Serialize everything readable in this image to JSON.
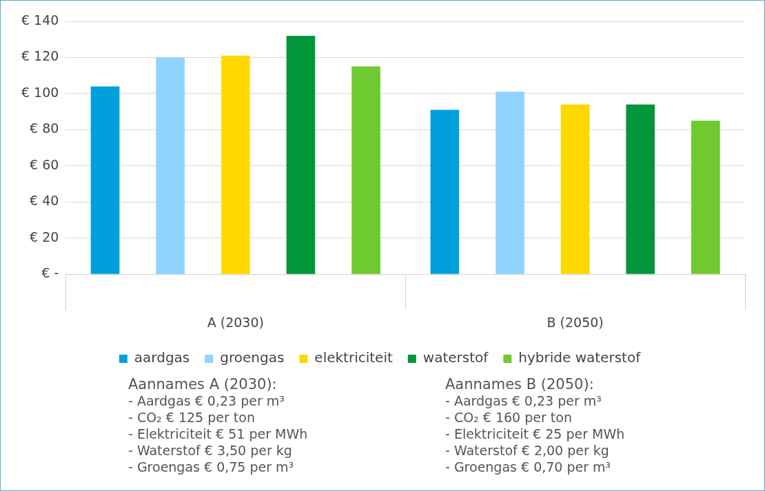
{
  "chart_data": {
    "type": "bar",
    "categories": [
      "A (2030)",
      "B (2050)"
    ],
    "series": [
      {
        "name": "aardgas",
        "color": "#00a0dc",
        "values": [
          104,
          91
        ]
      },
      {
        "name": "groengas",
        "color": "#8fd3ff",
        "values": [
          120,
          101
        ]
      },
      {
        "name": "elektriciteit",
        "color": "#ffd800",
        "values": [
          121,
          94
        ]
      },
      {
        "name": "waterstof",
        "color": "#009639",
        "values": [
          132,
          94
        ]
      },
      {
        "name": "hybride waterstof",
        "color": "#6fca2f",
        "values": [
          115,
          85
        ]
      }
    ],
    "ylim": [
      0,
      140
    ],
    "yticks": [
      {
        "value": 0,
        "label": "€ -"
      },
      {
        "value": 20,
        "label": "€ 20"
      },
      {
        "value": 40,
        "label": "€ 40"
      },
      {
        "value": 60,
        "label": "€ 60"
      },
      {
        "value": 80,
        "label": "€ 80"
      },
      {
        "value": 100,
        "label": "€ 100"
      },
      {
        "value": 120,
        "label": "€ 120"
      },
      {
        "value": 140,
        "label": "€ 140"
      }
    ],
    "grid": "y",
    "legend": "bottom",
    "annotations": [
      "Aannames A (2030):\n- Aardgas € 0,23 per m³\n- CO₂ € 125 per ton\n- Elektriciteit € 51 per MWh\n- Waterstof € 3,50 per kg\n- Groengas € 0,75 per m³",
      "Aannames B (2050):\n- Aardgas € 0,23 per m³\n- CO₂ € 160 per ton\n- Elektriciteit € 25 per MWh\n- Waterstof € 2,00 per kg\n- Groengas € 0,70 per m³"
    ]
  }
}
